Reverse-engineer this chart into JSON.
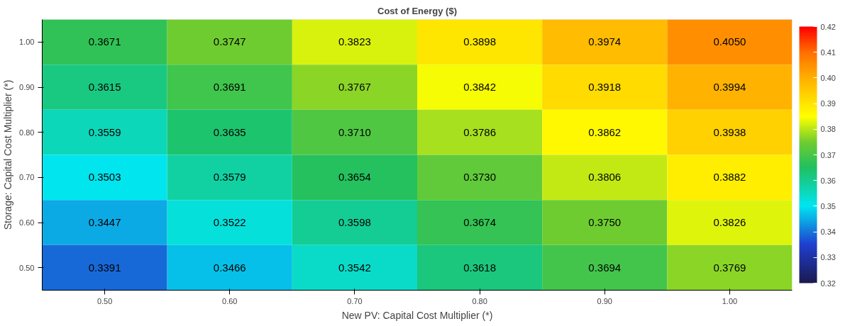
{
  "chart_data": {
    "type": "heatmap",
    "title": "Cost of Energy ($)",
    "xlabel": "New PV: Capital Cost Multiplier (*)",
    "ylabel": "Storage: Capital Cost Multiplier (*)",
    "categories": [
      "0.50",
      "0.60",
      "0.70",
      "0.80",
      "0.90",
      "1.00"
    ],
    "y_categories": [
      "1.00",
      "0.90",
      "0.80",
      "0.70",
      "0.60",
      "0.50"
    ],
    "cells": [
      [
        0.3671,
        0.3747,
        0.3823,
        0.3898,
        0.3974,
        0.405
      ],
      [
        0.3615,
        0.3691,
        0.3767,
        0.3842,
        0.3918,
        0.3994
      ],
      [
        0.3559,
        0.3635,
        0.371,
        0.3786,
        0.3862,
        0.3938
      ],
      [
        0.3503,
        0.3579,
        0.3654,
        0.373,
        0.3806,
        0.3882
      ],
      [
        0.3447,
        0.3522,
        0.3598,
        0.3674,
        0.375,
        0.3826
      ],
      [
        0.3391,
        0.3466,
        0.3542,
        0.3618,
        0.3694,
        0.3769
      ]
    ],
    "cell_labels": [
      [
        "0.3671",
        "0.3747",
        "0.3823",
        "0.3898",
        "0.3974",
        "0.4050"
      ],
      [
        "0.3615",
        "0.3691",
        "0.3767",
        "0.3842",
        "0.3918",
        "0.3994"
      ],
      [
        "0.3559",
        "0.3635",
        "0.3710",
        "0.3786",
        "0.3862",
        "0.3938"
      ],
      [
        "0.3503",
        "0.3579",
        "0.3654",
        "0.3730",
        "0.3806",
        "0.3882"
      ],
      [
        "0.3447",
        "0.3522",
        "0.3598",
        "0.3674",
        "0.3750",
        "0.3826"
      ],
      [
        "0.3391",
        "0.3466",
        "0.3542",
        "0.3618",
        "0.3694",
        "0.3769"
      ]
    ],
    "clim": [
      0.32,
      0.42
    ],
    "cticks": [
      0.32,
      0.33,
      0.34,
      0.35,
      0.36,
      0.37,
      0.38,
      0.39,
      {
        "value": 0.4,
        "label": "0.40"
      },
      0.41,
      0.42
    ]
  }
}
